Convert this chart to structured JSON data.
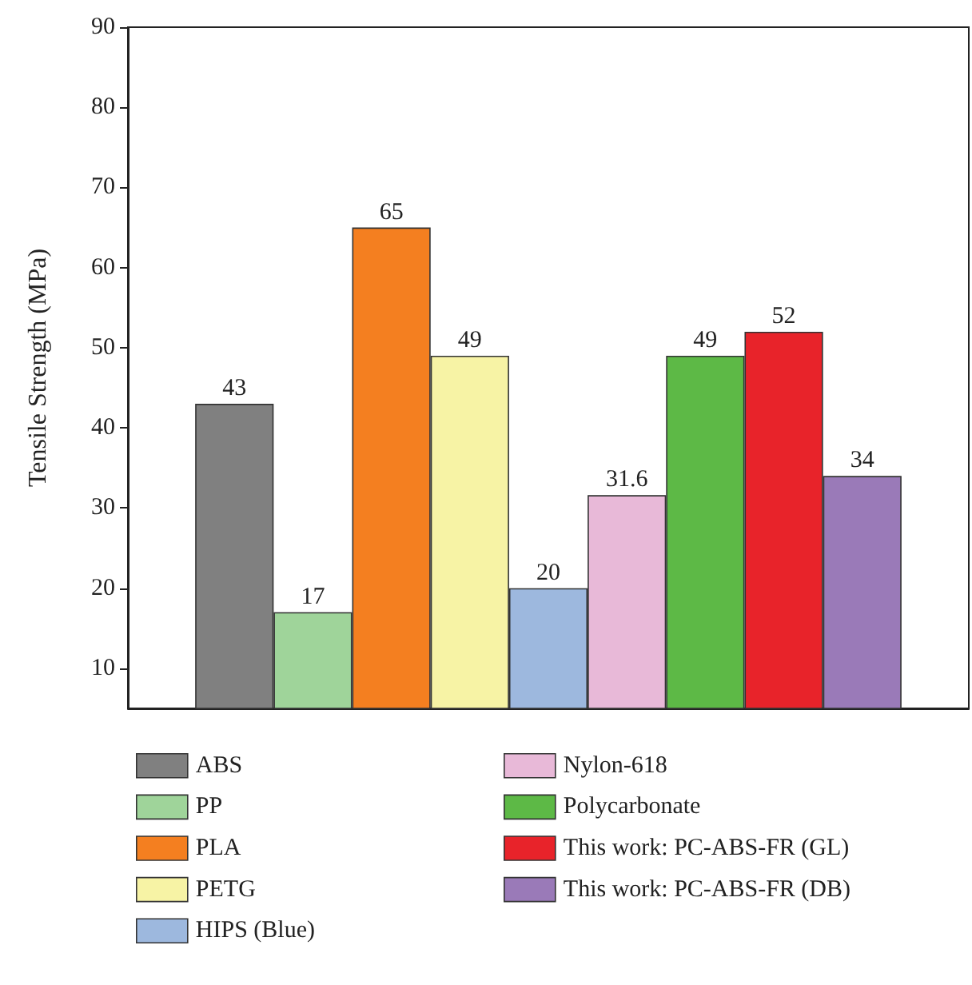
{
  "chart_data": {
    "type": "bar",
    "ylabel": "Tensile Strength (MPa)",
    "categories": [
      null
    ],
    "series": [
      {
        "name": "ABS",
        "color": "#808080",
        "values": [
          43
        ]
      },
      {
        "name": "PP",
        "color": "#9fd49a",
        "values": [
          17
        ]
      },
      {
        "name": "PLA",
        "color": "#f47f20",
        "values": [
          65
        ]
      },
      {
        "name": "PETG",
        "color": "#f7f3a5",
        "values": [
          49
        ]
      },
      {
        "name": "HIPS (Blue)",
        "color": "#9db8de",
        "values": [
          20
        ]
      },
      {
        "name": "Nylon-618",
        "color": "#e8b9d8",
        "values": [
          31.6
        ]
      },
      {
        "name": "Polycarbonate",
        "color": "#5db946",
        "values": [
          49
        ]
      },
      {
        "name": "This work: PC-ABS-FR (GL)",
        "color": "#e8232a",
        "values": [
          52
        ]
      },
      {
        "name": "This work: PC-ABS-FR (DB)",
        "color": "#9a7ab8",
        "values": [
          34
        ]
      }
    ],
    "ylim": [
      5,
      90
    ],
    "yticks": [
      10,
      20,
      30,
      40,
      50,
      60,
      70,
      80,
      90
    ],
    "data_labels": true,
    "grid": false,
    "legend": "bottom"
  }
}
